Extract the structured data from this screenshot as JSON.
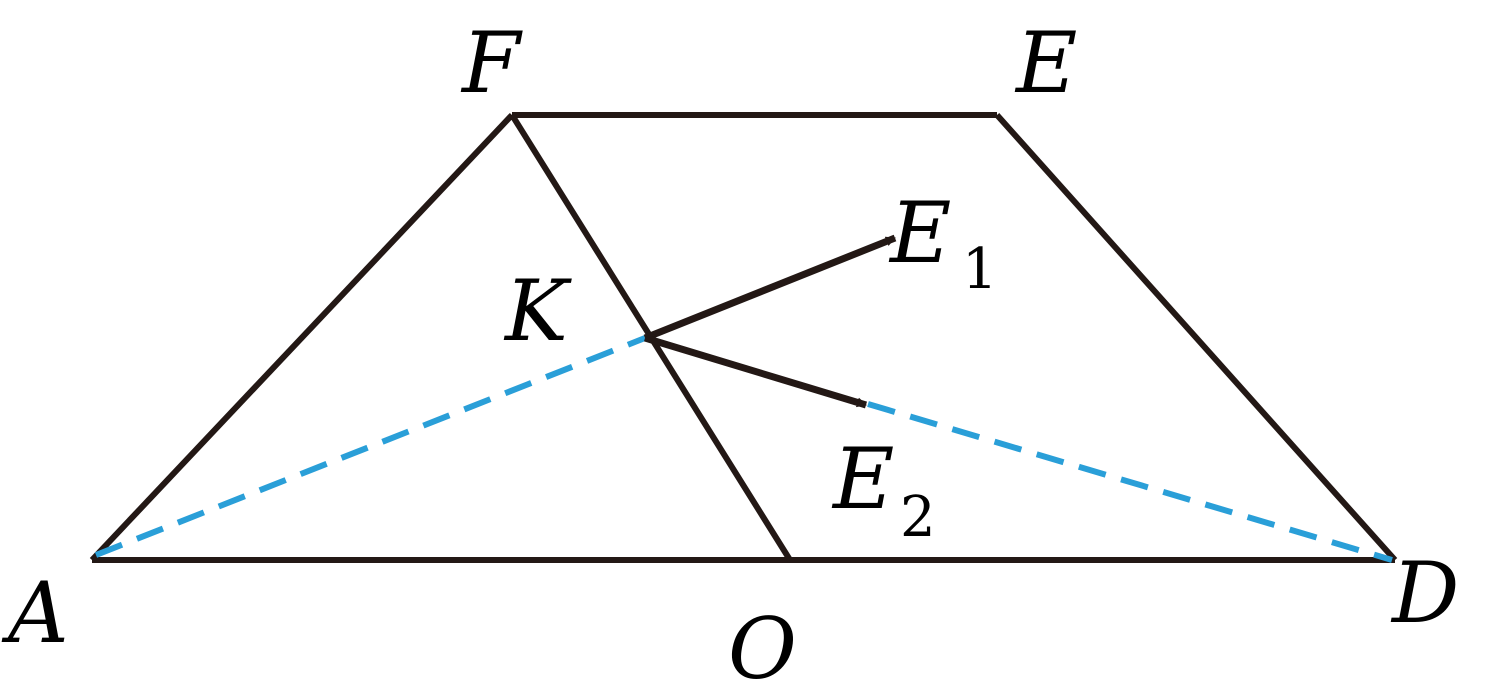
{
  "diagram": {
    "colors": {
      "line": "#231815",
      "dashed": "#2a9fd8",
      "text": "#000000"
    },
    "points": {
      "A": {
        "label": "A"
      },
      "O": {
        "label": "O"
      },
      "D": {
        "label": "D"
      },
      "F": {
        "label": "F"
      },
      "E": {
        "label": "E"
      },
      "K": {
        "label": "K"
      },
      "E1": {
        "label": "E",
        "subscript": "1"
      },
      "E2": {
        "label": "E",
        "subscript": "2"
      }
    }
  }
}
